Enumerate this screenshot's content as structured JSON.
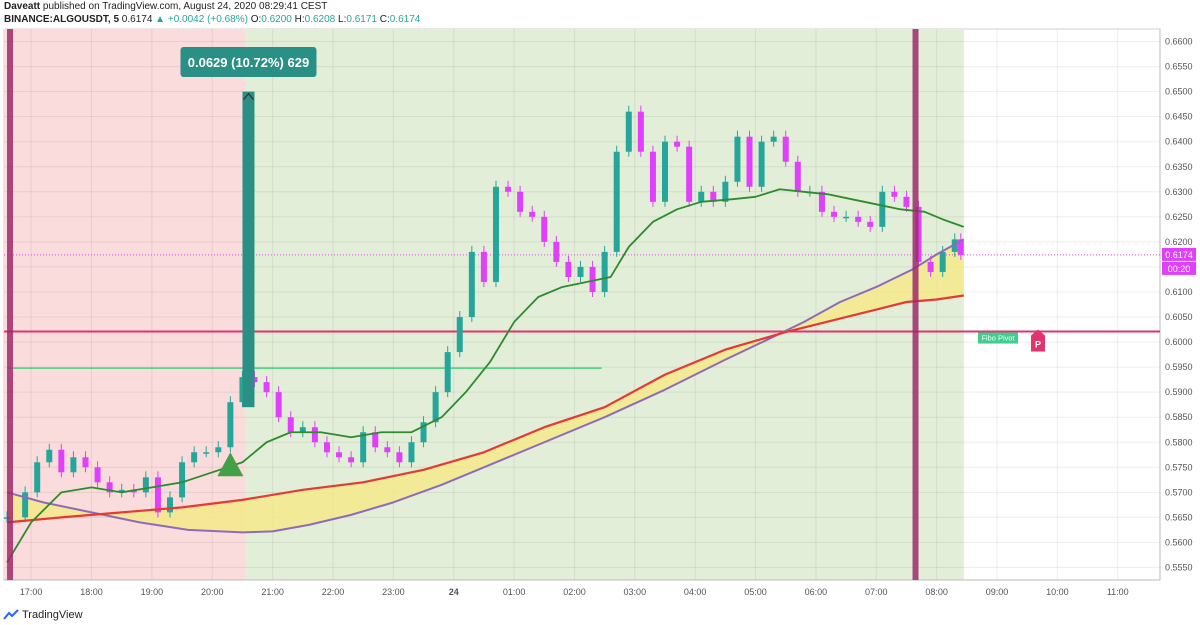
{
  "header": {
    "author": "Daveatt",
    "published": "published on TradingView.com, August 24, 2020 08:29:41 CEST",
    "symbol": "BINANCE:ALGOUSDT, 5",
    "last": "0.6174",
    "change_arrow": "▲",
    "change": "+0.0042 (+0.68%)",
    "o_label": "O:",
    "o": "0.6200",
    "h_label": "H:",
    "h": "0.6208",
    "l_label": "L:",
    "l": "0.6171",
    "c_label": "C:",
    "c": "0.6174"
  },
  "footer": {
    "brand": "TradingView",
    "logo_icon": "tradingview-logo-icon"
  },
  "colors": {
    "up": "#26a69a",
    "down": "#e040fb",
    "sma_fast": "#2e8b2e",
    "ema_red": "#e53935",
    "ema_purple": "#8e6bb8",
    "band_fill": "#f5e98a",
    "session_red": "#fbdcdc",
    "session_green": "#e3eed9",
    "marker_bar": "#9c2a6b",
    "pivot_line": "#e0336f",
    "level_line": "#2ecc71",
    "measure": "#2a8f84"
  },
  "chart_data": {
    "type": "line",
    "title": "",
    "xlabel": "",
    "ylabel": "",
    "ylim": [
      0.5525,
      0.6625
    ],
    "grid": true,
    "y_ticks": [
      "0.6600",
      "0.6550",
      "0.6500",
      "0.6450",
      "0.6400",
      "0.6350",
      "0.6300",
      "0.6250",
      "0.6200",
      "0.6150",
      "0.6100",
      "0.6050",
      "0.6000",
      "0.5950",
      "0.5900",
      "0.5850",
      "0.5800",
      "0.5750",
      "0.5700",
      "0.5650",
      "0.5600",
      "0.5550"
    ],
    "x_ticks": [
      {
        "t": 17,
        "label": "17:00"
      },
      {
        "t": 18,
        "label": "18:00"
      },
      {
        "t": 19,
        "label": "19:00"
      },
      {
        "t": 20,
        "label": "20:00"
      },
      {
        "t": 21,
        "label": "21:00"
      },
      {
        "t": 22,
        "label": "22:00"
      },
      {
        "t": 23,
        "label": "23:00"
      },
      {
        "t": 24,
        "label": "24"
      },
      {
        "t": 25,
        "label": "01:00"
      },
      {
        "t": 26,
        "label": "02:00"
      },
      {
        "t": 27,
        "label": "03:00"
      },
      {
        "t": 28,
        "label": "04:00"
      },
      {
        "t": 29,
        "label": "05:00"
      },
      {
        "t": 30,
        "label": "06:00"
      },
      {
        "t": 31,
        "label": "07:00"
      },
      {
        "t": 32,
        "label": "08:00"
      },
      {
        "t": 33,
        "label": "09:00"
      },
      {
        "t": 34,
        "label": "10:00"
      },
      {
        "t": 35,
        "label": "11:00"
      }
    ],
    "xlim": [
      16.55,
      35.7
    ],
    "sessions": [
      {
        "from": 16.55,
        "to": 20.55,
        "color": "session_red"
      },
      {
        "from": 20.55,
        "to": 32.45,
        "color": "session_green"
      }
    ],
    "price_series": {
      "name": "ALGOUSDT",
      "points": [
        [
          16.6,
          0.565
        ],
        [
          16.9,
          0.57
        ],
        [
          17.1,
          0.576
        ],
        [
          17.3,
          0.5785
        ],
        [
          17.5,
          0.574
        ],
        [
          17.7,
          0.577
        ],
        [
          17.9,
          0.575
        ],
        [
          18.1,
          0.572
        ],
        [
          18.3,
          0.57
        ],
        [
          18.5,
          0.5705
        ],
        [
          18.7,
          0.57
        ],
        [
          18.9,
          0.573
        ],
        [
          19.1,
          0.566
        ],
        [
          19.3,
          0.569
        ],
        [
          19.5,
          0.576
        ],
        [
          19.7,
          0.578
        ],
        [
          19.9,
          0.578
        ],
        [
          20.1,
          0.579
        ],
        [
          20.3,
          0.588
        ],
        [
          20.5,
          0.593
        ],
        [
          20.7,
          0.592
        ],
        [
          20.9,
          0.59
        ],
        [
          21.1,
          0.585
        ],
        [
          21.3,
          0.582
        ],
        [
          21.5,
          0.583
        ],
        [
          21.7,
          0.58
        ],
        [
          21.9,
          0.578
        ],
        [
          22.1,
          0.577
        ],
        [
          22.3,
          0.576
        ],
        [
          22.5,
          0.582
        ],
        [
          22.7,
          0.579
        ],
        [
          22.9,
          0.578
        ],
        [
          23.1,
          0.576
        ],
        [
          23.3,
          0.58
        ],
        [
          23.5,
          0.584
        ],
        [
          23.7,
          0.59
        ],
        [
          23.9,
          0.598
        ],
        [
          24.1,
          0.605
        ],
        [
          24.3,
          0.618
        ],
        [
          24.5,
          0.612
        ],
        [
          24.7,
          0.631
        ],
        [
          24.9,
          0.63
        ],
        [
          25.1,
          0.626
        ],
        [
          25.3,
          0.625
        ],
        [
          25.5,
          0.62
        ],
        [
          25.7,
          0.616
        ],
        [
          25.9,
          0.613
        ],
        [
          26.1,
          0.615
        ],
        [
          26.3,
          0.61
        ],
        [
          26.5,
          0.618
        ],
        [
          26.7,
          0.638
        ],
        [
          26.9,
          0.646
        ],
        [
          27.1,
          0.638
        ],
        [
          27.3,
          0.628
        ],
        [
          27.5,
          0.64
        ],
        [
          27.7,
          0.639
        ],
        [
          27.9,
          0.628
        ],
        [
          28.1,
          0.63
        ],
        [
          28.3,
          0.628
        ],
        [
          28.5,
          0.632
        ],
        [
          28.7,
          0.641
        ],
        [
          28.9,
          0.631
        ],
        [
          29.1,
          0.64
        ],
        [
          29.3,
          0.641
        ],
        [
          29.5,
          0.636
        ],
        [
          29.7,
          0.63
        ],
        [
          29.9,
          0.63
        ],
        [
          30.1,
          0.626
        ],
        [
          30.3,
          0.625
        ],
        [
          30.5,
          0.625
        ],
        [
          30.7,
          0.624
        ],
        [
          30.9,
          0.623
        ],
        [
          31.1,
          0.63
        ],
        [
          31.3,
          0.629
        ],
        [
          31.5,
          0.627
        ],
        [
          31.7,
          0.616
        ],
        [
          31.9,
          0.614
        ],
        [
          32.1,
          0.618
        ],
        [
          32.3,
          0.6205
        ],
        [
          32.4,
          0.6174
        ]
      ]
    },
    "sma_fast": {
      "points": [
        [
          16.6,
          0.556
        ],
        [
          17.0,
          0.564
        ],
        [
          17.5,
          0.57
        ],
        [
          18.0,
          0.571
        ],
        [
          18.5,
          0.57
        ],
        [
          19.0,
          0.571
        ],
        [
          19.5,
          0.572
        ],
        [
          20.0,
          0.574
        ],
        [
          20.5,
          0.576
        ],
        [
          20.9,
          0.58
        ],
        [
          21.3,
          0.582
        ],
        [
          21.8,
          0.582
        ],
        [
          22.3,
          0.581
        ],
        [
          22.8,
          0.582
        ],
        [
          23.3,
          0.582
        ],
        [
          23.8,
          0.585
        ],
        [
          24.2,
          0.59
        ],
        [
          24.6,
          0.596
        ],
        [
          25.0,
          0.604
        ],
        [
          25.4,
          0.609
        ],
        [
          25.8,
          0.611
        ],
        [
          26.2,
          0.612
        ],
        [
          26.6,
          0.613
        ],
        [
          26.9,
          0.619
        ],
        [
          27.3,
          0.624
        ],
        [
          27.7,
          0.6265
        ],
        [
          28.1,
          0.628
        ],
        [
          28.6,
          0.6285
        ],
        [
          29.0,
          0.629
        ],
        [
          29.4,
          0.6305
        ],
        [
          29.8,
          0.63
        ],
        [
          30.2,
          0.6295
        ],
        [
          30.6,
          0.6285
        ],
        [
          31.0,
          0.6275
        ],
        [
          31.4,
          0.6265
        ],
        [
          31.8,
          0.626
        ],
        [
          32.1,
          0.6245
        ],
        [
          32.45,
          0.623
        ]
      ]
    },
    "ema_red": {
      "points": [
        [
          16.6,
          0.564
        ],
        [
          17.5,
          0.565
        ],
        [
          18.5,
          0.566
        ],
        [
          19.5,
          0.567
        ],
        [
          20.5,
          0.5685
        ],
        [
          21.5,
          0.5705
        ],
        [
          22.5,
          0.572
        ],
        [
          23.5,
          0.5745
        ],
        [
          24.5,
          0.578
        ],
        [
          25.5,
          0.583
        ],
        [
          26.5,
          0.587
        ],
        [
          27.5,
          0.5935
        ],
        [
          28.5,
          0.5985
        ],
        [
          29.5,
          0.602
        ],
        [
          30.0,
          0.6035
        ],
        [
          30.5,
          0.605
        ],
        [
          31.0,
          0.6065
        ],
        [
          31.5,
          0.608
        ],
        [
          32.0,
          0.6085
        ],
        [
          32.45,
          0.6093
        ]
      ]
    },
    "ema_purple": {
      "points": [
        [
          16.6,
          0.57
        ],
        [
          17.2,
          0.568
        ],
        [
          18.0,
          0.566
        ],
        [
          18.8,
          0.564
        ],
        [
          19.6,
          0.5625
        ],
        [
          20.5,
          0.562
        ],
        [
          21.0,
          0.5622
        ],
        [
          21.6,
          0.5635
        ],
        [
          22.3,
          0.5655
        ],
        [
          23.0,
          0.568
        ],
        [
          23.8,
          0.5715
        ],
        [
          24.6,
          0.5755
        ],
        [
          25.5,
          0.58
        ],
        [
          26.5,
          0.585
        ],
        [
          27.5,
          0.5905
        ],
        [
          28.5,
          0.5965
        ],
        [
          29.2,
          0.6005
        ],
        [
          29.8,
          0.604
        ],
        [
          30.4,
          0.608
        ],
        [
          31.0,
          0.611
        ],
        [
          31.6,
          0.6145
        ],
        [
          32.0,
          0.6175
        ],
        [
          32.45,
          0.6205
        ]
      ]
    },
    "levels": [
      {
        "name": "pivot",
        "value": 0.6021,
        "label": "Fibo Pivot",
        "marker": "P"
      },
      {
        "name": "level",
        "value": 0.5948
      }
    ],
    "last_price": {
      "label": "0.6174",
      "value": 0.6174,
      "countdown": "00:20"
    },
    "vertical_markers": [
      16.65,
      31.65
    ],
    "measure": {
      "from": 0.587,
      "to": 0.65,
      "t": 20.6,
      "label": "0.0629 (10.72%) 629"
    },
    "buy_signal": {
      "t": 20.3,
      "value": 0.576
    }
  }
}
